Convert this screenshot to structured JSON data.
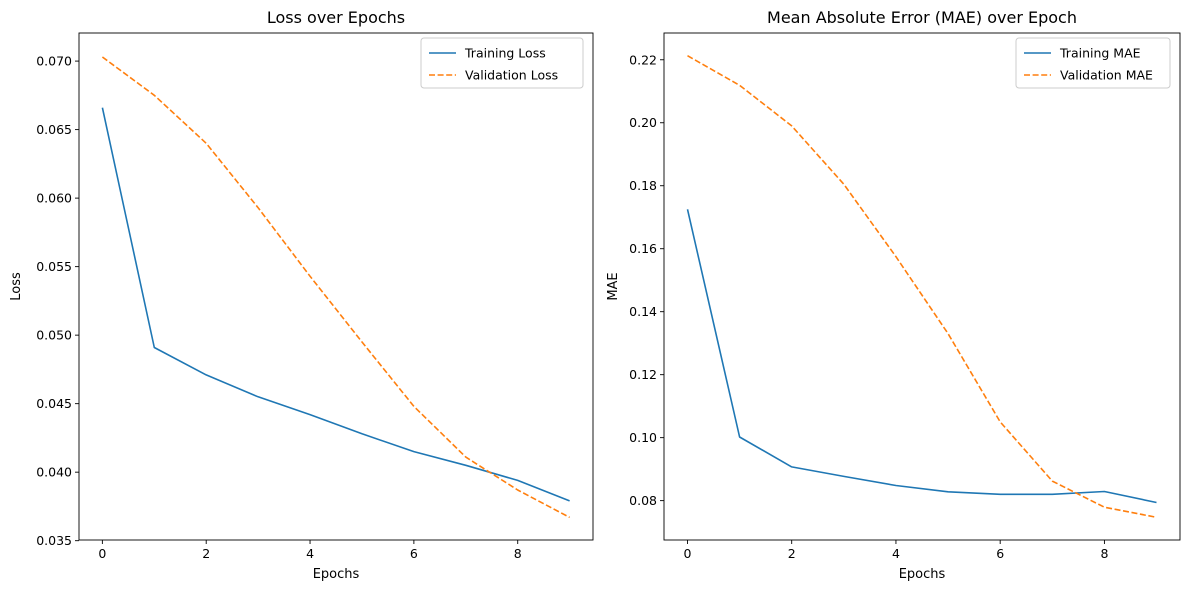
{
  "chart_data": [
    {
      "type": "line",
      "title": "Loss over Epochs",
      "xlabel": "Epochs",
      "ylabel": "Loss",
      "xlim": [
        -0.45,
        9.45
      ],
      "ylim": [
        0.03505,
        0.07205
      ],
      "xticks": [
        0,
        2,
        4,
        6,
        8
      ],
      "xtick_labels": [
        "0",
        "2",
        "4",
        "6",
        "8"
      ],
      "yticks": [
        0.035,
        0.04,
        0.045,
        0.05,
        0.055,
        0.06,
        0.065,
        0.07
      ],
      "ytick_labels": [
        "0.035",
        "0.040",
        "0.045",
        "0.050",
        "0.055",
        "0.060",
        "0.065",
        "0.070"
      ],
      "grid": false,
      "legend_position": "top-right",
      "x": [
        0,
        1,
        2,
        3,
        4,
        5,
        6,
        7,
        8,
        9
      ],
      "series": [
        {
          "name": "Training Loss",
          "style": "solid",
          "color": "#1f77b4",
          "values": [
            0.0666,
            0.0491,
            0.0471,
            0.0455,
            0.0442,
            0.0428,
            0.0415,
            0.0405,
            0.0394,
            0.0379
          ]
        },
        {
          "name": "Validation Loss",
          "style": "dashed",
          "color": "#ff7f0e",
          "values": [
            0.0703,
            0.0675,
            0.064,
            0.0593,
            0.0543,
            0.0495,
            0.0448,
            0.0411,
            0.0387,
            0.0367
          ]
        }
      ]
    },
    {
      "type": "line",
      "title": "Mean Absolute Error (MAE) over Epoch",
      "xlabel": "Epochs",
      "ylabel": "MAE",
      "xlim": [
        -0.45,
        9.45
      ],
      "ylim": [
        0.0675,
        0.2285
      ],
      "xticks": [
        0,
        2,
        4,
        6,
        8
      ],
      "xtick_labels": [
        "0",
        "2",
        "4",
        "6",
        "8"
      ],
      "yticks": [
        0.08,
        0.1,
        0.12,
        0.14,
        0.16,
        0.18,
        0.2,
        0.22
      ],
      "ytick_labels": [
        "0.08",
        "0.10",
        "0.12",
        "0.14",
        "0.16",
        "0.18",
        "0.20",
        "0.22"
      ],
      "grid": false,
      "legend_position": "top-right",
      "x": [
        0,
        1,
        2,
        3,
        4,
        5,
        6,
        7,
        8,
        9
      ],
      "series": [
        {
          "name": "Training MAE",
          "style": "solid",
          "color": "#1f77b4",
          "values": [
            0.1725,
            0.1002,
            0.0907,
            0.0877,
            0.0848,
            0.0828,
            0.082,
            0.082,
            0.0829,
            0.0794
          ]
        },
        {
          "name": "Validation MAE",
          "style": "dashed",
          "color": "#ff7f0e",
          "values": [
            0.2213,
            0.2119,
            0.199,
            0.1805,
            0.1575,
            0.133,
            0.105,
            0.0862,
            0.0779,
            0.0747
          ]
        }
      ]
    }
  ]
}
